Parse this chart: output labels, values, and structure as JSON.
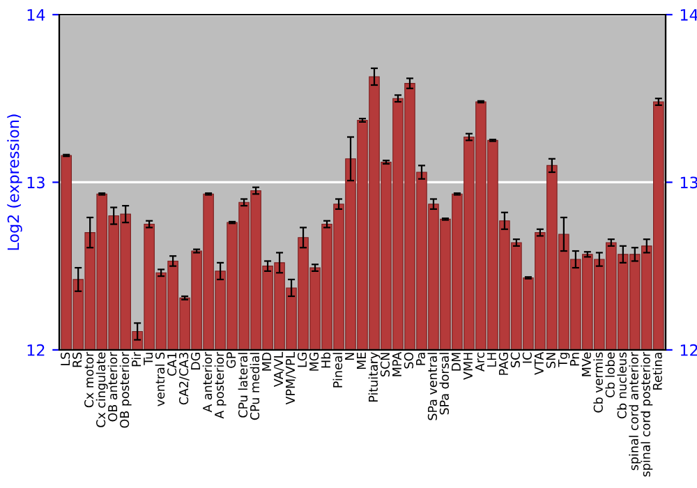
{
  "chart_data": {
    "type": "bar",
    "ylabel": "Log2 (expression)",
    "categories": [
      "LS",
      "RS",
      "Cx motor",
      "Cx cingulate",
      "OB anterior",
      "OB posterior",
      "Pir",
      "Tu",
      "ventral S",
      "CA1",
      "CA2/CA3",
      "DG",
      "A anterior",
      "A posterior",
      "GP",
      "CPu lateral",
      "CPu medial",
      "MD",
      "VA/VL",
      "VPM/VPL",
      "LG",
      "MG",
      "Hb",
      "Pineal",
      "N",
      "ME",
      "Pituitary",
      "SCN",
      "MPA",
      "SO",
      "Pa",
      "SPa ventral",
      "SPa dorsal",
      "DM",
      "VMH",
      "Arc",
      "LH",
      "PAG",
      "SC",
      "IC",
      "VTA",
      "SN",
      "Tg",
      "Pn",
      "MVe",
      "Cb vermis",
      "Cb lobe",
      "Cb nucleus",
      "spinal cord anterior",
      "spinal cord posterior",
      "Retina"
    ],
    "values": [
      13.16,
      12.42,
      12.7,
      12.93,
      12.8,
      12.81,
      12.11,
      12.75,
      12.46,
      12.53,
      12.31,
      12.59,
      12.93,
      12.47,
      12.76,
      12.88,
      12.95,
      12.5,
      12.52,
      12.37,
      12.67,
      12.49,
      12.75,
      12.87,
      13.14,
      13.37,
      13.63,
      13.12,
      13.5,
      13.59,
      13.06,
      12.87,
      12.78,
      12.93,
      13.27,
      13.48,
      13.25,
      12.77,
      12.64,
      12.43,
      12.7,
      13.1,
      12.69,
      12.54,
      12.57,
      12.54,
      12.64,
      12.57,
      12.57,
      12.62,
      13.48
    ],
    "errors": [
      0.005,
      0.07,
      0.09,
      0.005,
      0.05,
      0.05,
      0.05,
      0.02,
      0.02,
      0.03,
      0.01,
      0.01,
      0.005,
      0.05,
      0.005,
      0.02,
      0.02,
      0.03,
      0.06,
      0.05,
      0.06,
      0.02,
      0.02,
      0.03,
      0.13,
      0.01,
      0.05,
      0.01,
      0.02,
      0.03,
      0.04,
      0.03,
      0.005,
      0.005,
      0.02,
      0.005,
      0.005,
      0.05,
      0.02,
      0.005,
      0.02,
      0.04,
      0.1,
      0.05,
      0.015,
      0.04,
      0.02,
      0.05,
      0.04,
      0.04,
      0.02
    ],
    "color": "#b53a3a",
    "ylim": [
      12,
      14
    ],
    "yticks": [
      12,
      13,
      14
    ],
    "y2lim": [
      12,
      14
    ],
    "y2ticks": [
      12,
      13,
      14
    ],
    "grid": "y"
  }
}
